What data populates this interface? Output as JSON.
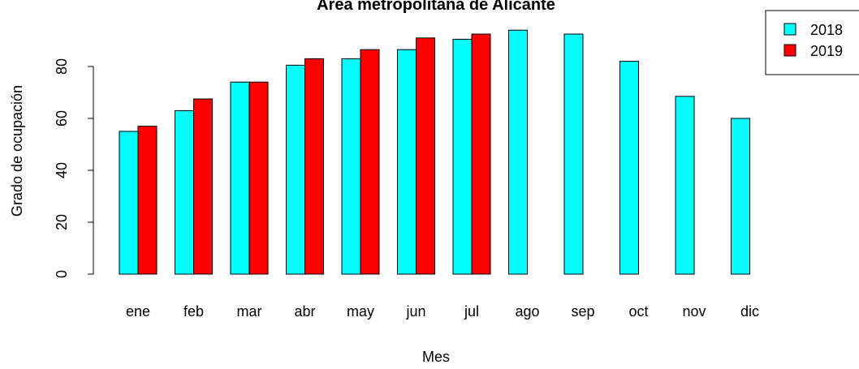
{
  "chart_data": {
    "type": "bar",
    "title": "Área metropolitana de Alicante",
    "xlabel": "Mes",
    "ylabel": "Grado de ocupación",
    "categories": [
      "ene",
      "feb",
      "mar",
      "abr",
      "may",
      "jun",
      "jul",
      "ago",
      "sep",
      "oct",
      "nov",
      "dic"
    ],
    "yticks": [
      0,
      20,
      40,
      60,
      80
    ],
    "ylim": [
      0,
      100
    ],
    "grid": false,
    "legend_position": "top-right",
    "series": [
      {
        "name": "2018",
        "color": "#00FFFF",
        "values": [
          55,
          63,
          74,
          80.5,
          83,
          86.5,
          90.5,
          94,
          92.5,
          82,
          68.5,
          60
        ]
      },
      {
        "name": "2019",
        "color": "#FF0000",
        "values": [
          57,
          67.5,
          74,
          83,
          86.5,
          91,
          92.5,
          null,
          null,
          null,
          null,
          null
        ]
      }
    ]
  }
}
